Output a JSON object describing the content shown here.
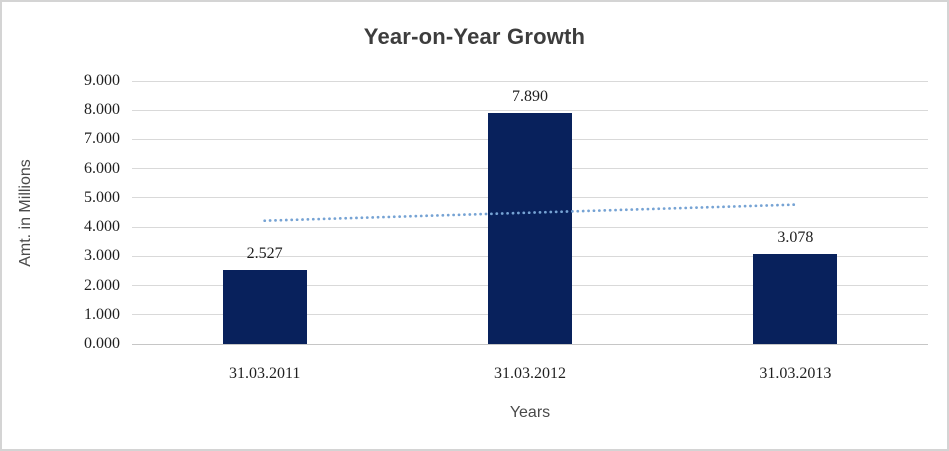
{
  "chart_data": {
    "type": "bar",
    "title": "Year-on-Year Growth",
    "categories": [
      "31.03.2011",
      "31.03.2012",
      "31.03.2013"
    ],
    "values": [
      2.527,
      7.89,
      3.078
    ],
    "data_labels": [
      "2.527",
      "7.890",
      "3.078"
    ],
    "ytick_labels": [
      "9.000",
      "8.000",
      "7.000",
      "6.000",
      "5.000",
      "4.000",
      "3.000",
      "2.000",
      "1.000",
      "0.000"
    ],
    "ylim": [
      0,
      9
    ],
    "ytick_step": 1,
    "xlabel": "Years",
    "ylabel": "Amt. in Millions",
    "grid": true,
    "legend": false,
    "trendline": {
      "type": "linear",
      "style": "dotted",
      "start_value": 4.22,
      "end_value": 4.77
    },
    "colors": {
      "bar": "#08215c",
      "trendline": "#76a3d4",
      "gridline": "#d9d9d9",
      "axis_line": "#c6c6c6",
      "title_text": "#3d3d3d",
      "tick_text": "#1f1f1f",
      "axis_title_text": "#4a4a4a",
      "frame_border": "#d4d4d4",
      "background": "#ffffff"
    }
  }
}
